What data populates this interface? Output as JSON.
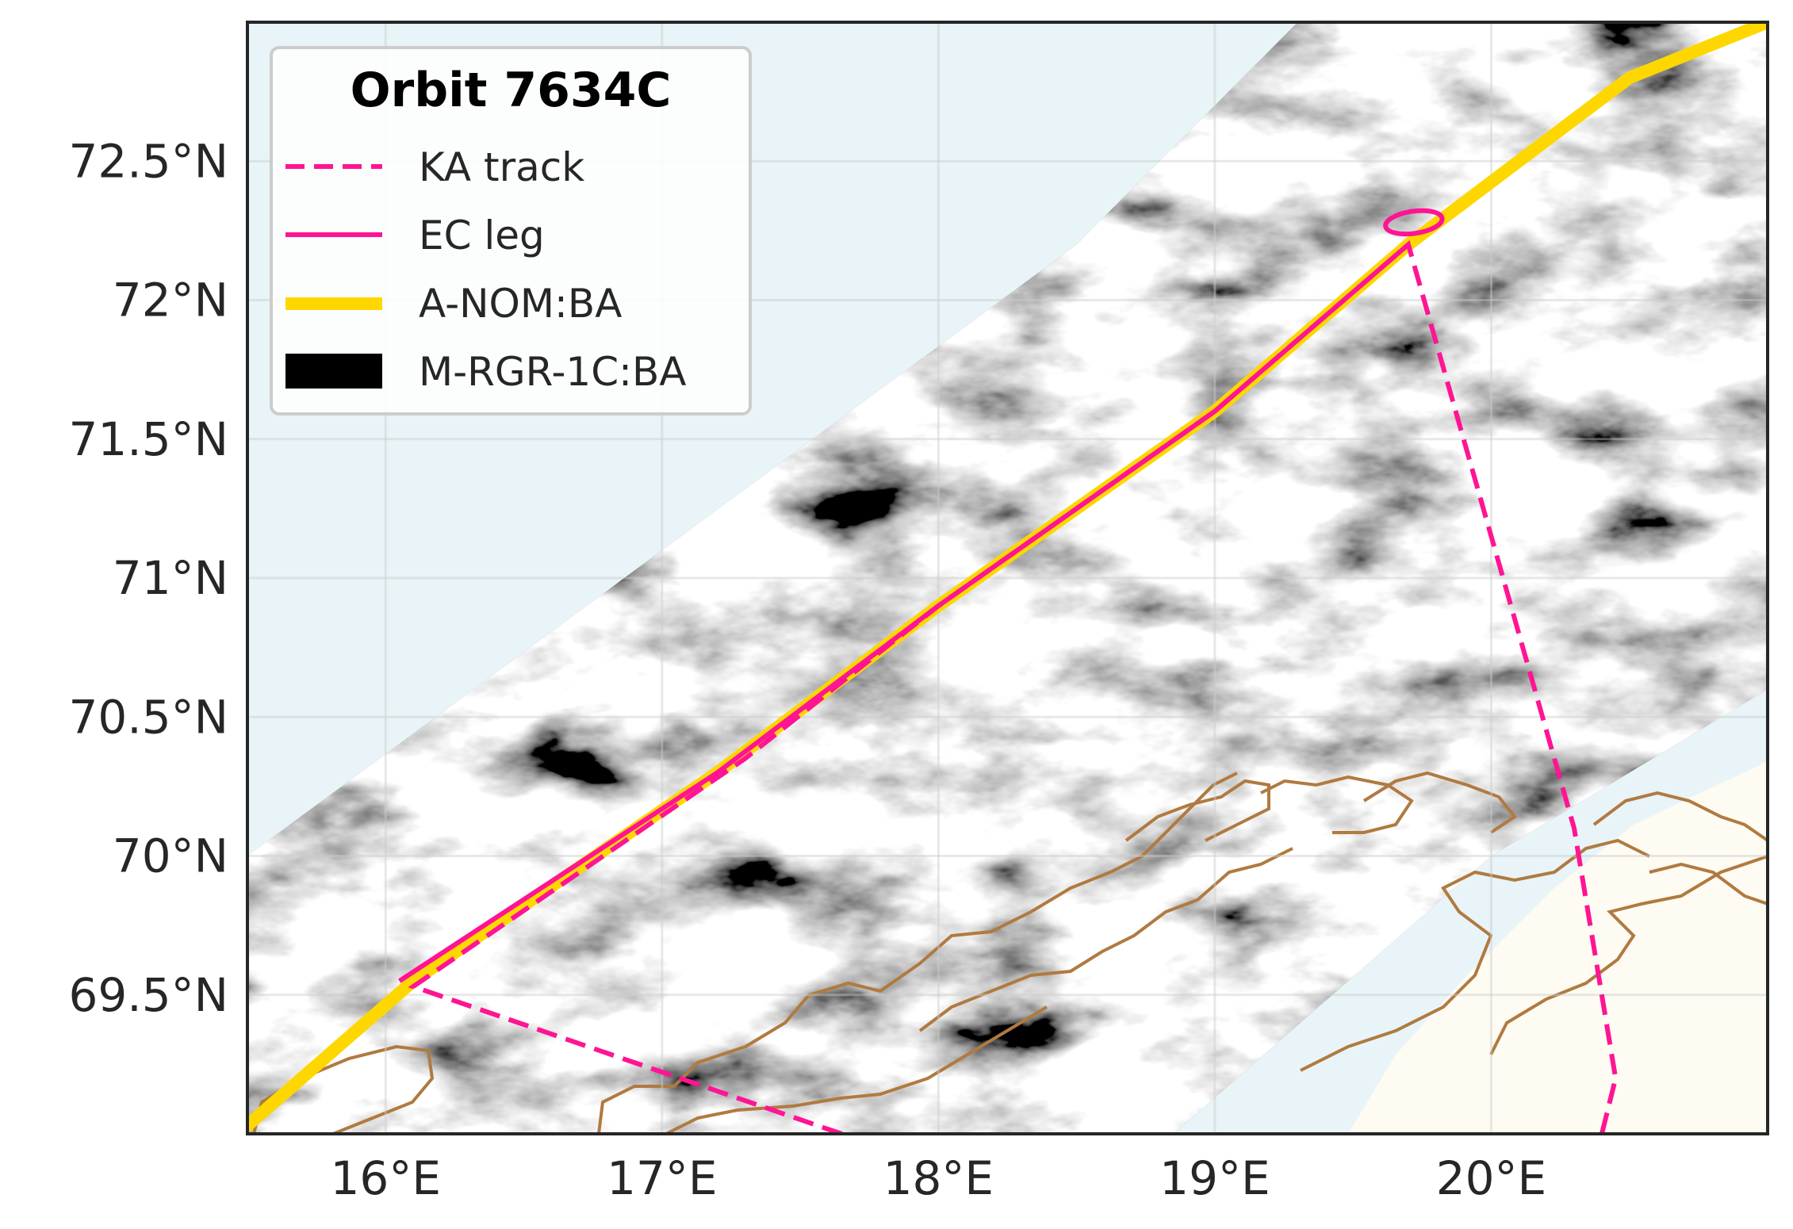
{
  "map": {
    "lon_range": [
      15.5,
      21.0
    ],
    "lat_range": [
      69.0,
      73.0
    ],
    "lon_ticks": [
      16,
      17,
      18,
      19,
      20
    ],
    "lat_ticks": [
      69.5,
      70,
      70.5,
      71,
      71.5,
      72,
      72.5
    ],
    "lon_tick_labels": [
      "16°E",
      "17°E",
      "18°E",
      "19°E",
      "20°E"
    ],
    "lat_tick_labels": [
      "69.5°N",
      "70°N",
      "70.5°N",
      "71°N",
      "71.5°N",
      "72°N",
      "72.5°N"
    ],
    "grid": true,
    "colors": {
      "ocean": "#e8f4f8",
      "land": "#fdfbf2",
      "coastline": "#b07a40",
      "ka_track": "#ff1493",
      "ec_leg": "#ff1493",
      "a_nom": "#ffd700",
      "m_rgr": "#000000"
    }
  },
  "legend": {
    "title": "Orbit 7634C",
    "placement": "upper-left",
    "entries": [
      {
        "label": "KA track",
        "style": "dashed-line",
        "color": "#ff1493"
      },
      {
        "label": "EC leg",
        "style": "solid-line",
        "color": "#ff1493"
      },
      {
        "label": "A-NOM:BA",
        "style": "thick-line",
        "color": "#ffd700"
      },
      {
        "label": "M-RGR-1C:BA",
        "style": "patch",
        "color": "#000000"
      }
    ]
  },
  "chart_data": {
    "type": "map",
    "tracks": [
      {
        "label": "A-NOM:BA",
        "points": [
          [
            15.5,
            69.03
          ],
          [
            16.1,
            69.55
          ],
          [
            17.2,
            70.3
          ],
          [
            18.0,
            70.9
          ],
          [
            19.0,
            71.6
          ],
          [
            19.7,
            72.2
          ],
          [
            20.5,
            72.8
          ],
          [
            21.0,
            73.0
          ]
        ]
      },
      {
        "label": "EC leg",
        "points": [
          [
            16.05,
            69.55
          ],
          [
            17.2,
            70.3
          ],
          [
            18.0,
            70.9
          ],
          [
            19.0,
            71.6
          ],
          [
            19.7,
            72.2
          ]
        ]
      },
      {
        "label": "KA track",
        "points": [
          [
            17.65,
            69.0
          ],
          [
            16.1,
            69.53
          ],
          [
            17.3,
            70.35
          ],
          [
            18.0,
            70.9
          ],
          [
            19.0,
            71.6
          ],
          [
            19.7,
            72.2
          ],
          [
            20.3,
            70.1
          ],
          [
            20.45,
            69.2
          ],
          [
            20.4,
            69.0
          ]
        ]
      }
    ],
    "ka_loop_center": [
      19.72,
      72.28
    ],
    "m_rgr_swath": [
      [
        15.5,
        70.0
      ],
      [
        17.0,
        71.1
      ],
      [
        18.5,
        72.2
      ],
      [
        19.3,
        73.0
      ],
      [
        21.0,
        73.0
      ],
      [
        21.0,
        70.6
      ],
      [
        20.0,
        70.0
      ],
      [
        18.85,
        69.0
      ],
      [
        15.5,
        69.0
      ]
    ]
  }
}
